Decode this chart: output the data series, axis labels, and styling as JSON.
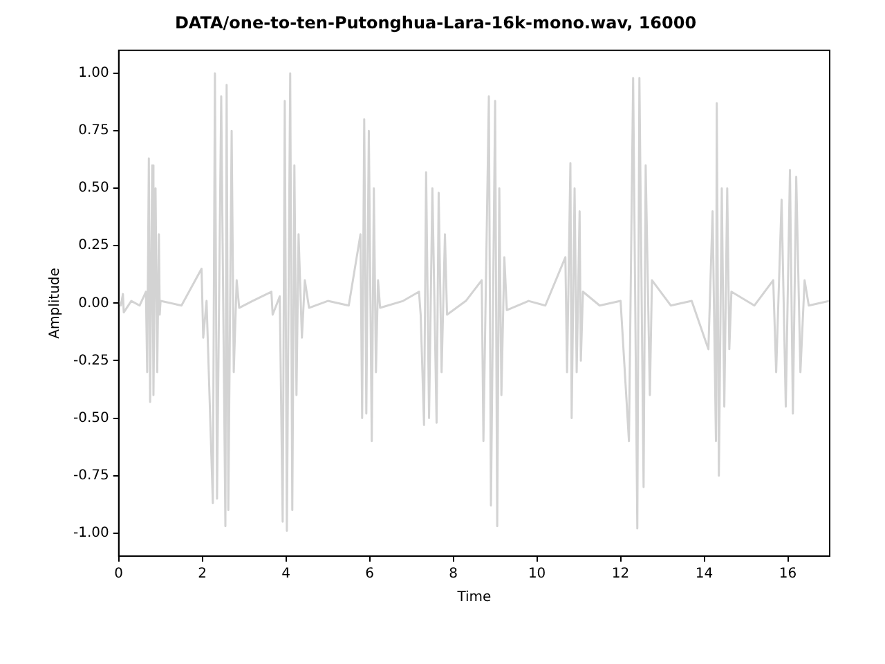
{
  "chart_data": {
    "type": "line",
    "title": "DATA/one-to-ten-Putonghua-Lara-16k-mono.wav, 16000",
    "xlabel": "Time",
    "ylabel": "Amplitude",
    "xlim": [
      0,
      17
    ],
    "xticks": [
      0,
      2,
      4,
      6,
      8,
      10,
      12,
      14,
      16
    ],
    "ylim": [
      -1.1,
      1.1
    ],
    "yticks": [
      {
        "value": -1,
        "label": "-1.00"
      },
      {
        "value": -0.75,
        "label": "-0.75"
      },
      {
        "value": -0.5,
        "label": "-0.50"
      },
      {
        "value": -0.25,
        "label": "-0.25"
      },
      {
        "value": 0,
        "label": "0.00"
      },
      {
        "value": 0.25,
        "label": "0.25"
      },
      {
        "value": 0.5,
        "label": "0.50"
      },
      {
        "value": 0.75,
        "label": "0.75"
      },
      {
        "value": 1,
        "label": "1.00"
      }
    ],
    "grid": false,
    "legend": false,
    "marker": "none",
    "line_style": "solid",
    "series": [
      {
        "color": "#d3d3d3",
        "x": [
          0,
          0.05,
          0.1,
          0.12,
          0.3,
          0.5,
          0.65,
          0.68,
          0.72,
          0.75,
          0.8,
          0.83,
          0.88,
          0.92,
          0.96,
          0.98,
          1.0,
          1.5,
          1.98,
          2.02,
          2.1,
          2.25,
          2.3,
          2.35,
          2.45,
          2.55,
          2.58,
          2.62,
          2.7,
          2.75,
          2.82,
          2.88,
          3.2,
          3.65,
          3.68,
          3.85,
          3.92,
          3.97,
          4.02,
          4.1,
          4.15,
          4.2,
          4.25,
          4.3,
          4.38,
          4.45,
          4.55,
          5.0,
          5.5,
          5.78,
          5.82,
          5.87,
          5.92,
          5.98,
          6.05,
          6.1,
          6.15,
          6.2,
          6.25,
          6.8,
          7.18,
          7.22,
          7.3,
          7.35,
          7.42,
          7.5,
          7.6,
          7.65,
          7.72,
          7.8,
          7.85,
          8.3,
          8.68,
          8.72,
          8.85,
          8.9,
          9.0,
          9.05,
          9.1,
          9.15,
          9.22,
          9.28,
          9.8,
          10.2,
          10.68,
          10.72,
          10.8,
          10.83,
          10.9,
          10.95,
          11.02,
          11.05,
          11.1,
          11.5,
          12.0,
          12.2,
          12.3,
          12.4,
          12.45,
          12.55,
          12.6,
          12.7,
          12.75,
          13.2,
          13.7,
          14.1,
          14.2,
          14.28,
          14.3,
          14.35,
          14.42,
          14.48,
          14.55,
          14.6,
          14.65,
          15.2,
          15.65,
          15.72,
          15.85,
          15.95,
          16.05,
          16.12,
          16.2,
          16.3,
          16.4,
          16.5,
          17.0
        ],
        "values": [
          0.01,
          -0.01,
          0.04,
          -0.04,
          0.01,
          -0.01,
          0.05,
          -0.3,
          0.63,
          -0.43,
          0.6,
          -0.4,
          0.5,
          -0.3,
          0.3,
          -0.05,
          0.01,
          -0.01,
          0.15,
          -0.15,
          0.01,
          -0.87,
          1.0,
          -0.85,
          0.9,
          -0.97,
          0.95,
          -0.9,
          0.75,
          -0.3,
          0.1,
          -0.02,
          0.01,
          0.05,
          -0.05,
          0.03,
          -0.95,
          0.88,
          -0.99,
          1.0,
          -0.9,
          0.6,
          -0.4,
          0.3,
          -0.15,
          0.1,
          -0.02,
          0.01,
          -0.01,
          0.3,
          -0.5,
          0.8,
          -0.48,
          0.75,
          -0.6,
          0.5,
          -0.3,
          0.1,
          -0.02,
          0.01,
          0.05,
          -0.05,
          -0.53,
          0.57,
          -0.5,
          0.5,
          -0.52,
          0.48,
          -0.3,
          0.3,
          -0.05,
          0.01,
          0.1,
          -0.6,
          0.9,
          -0.88,
          0.88,
          -0.97,
          0.5,
          -0.4,
          0.2,
          -0.03,
          0.01,
          -0.01,
          0.2,
          -0.3,
          0.61,
          -0.5,
          0.5,
          -0.3,
          0.4,
          -0.25,
          0.05,
          -0.01,
          0.01,
          -0.6,
          0.98,
          -0.98,
          0.98,
          -0.8,
          0.6,
          -0.4,
          0.1,
          -0.01,
          0.01,
          -0.2,
          0.4,
          -0.6,
          0.87,
          -0.75,
          0.5,
          -0.45,
          0.5,
          -0.2,
          0.05,
          -0.01,
          0.1,
          -0.3,
          0.45,
          -0.45,
          0.58,
          -0.48,
          0.55,
          -0.3,
          0.1,
          -0.01,
          0.01
        ]
      }
    ]
  }
}
